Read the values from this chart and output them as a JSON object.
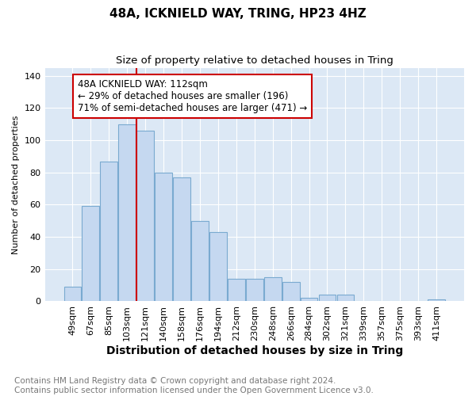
{
  "title": "48A, ICKNIELD WAY, TRING, HP23 4HZ",
  "subtitle": "Size of property relative to detached houses in Tring",
  "xlabel": "Distribution of detached houses by size in Tring",
  "ylabel": "Number of detached properties",
  "categories": [
    "49sqm",
    "67sqm",
    "85sqm",
    "103sqm",
    "121sqm",
    "140sqm",
    "158sqm",
    "176sqm",
    "194sqm",
    "212sqm",
    "230sqm",
    "248sqm",
    "266sqm",
    "284sqm",
    "302sqm",
    "321sqm",
    "339sqm",
    "357sqm",
    "375sqm",
    "393sqm",
    "411sqm"
  ],
  "values": [
    9,
    59,
    87,
    110,
    106,
    80,
    77,
    50,
    43,
    14,
    14,
    15,
    12,
    2,
    4,
    4,
    0,
    0,
    0,
    0,
    1
  ],
  "bar_color": "#c5d8f0",
  "bar_edge_color": "#7aaad0",
  "vline_color": "#cc0000",
  "vline_index": 4,
  "annotation_text": "48A ICKNIELD WAY: 112sqm\n← 29% of detached houses are smaller (196)\n71% of semi-detached houses are larger (471) →",
  "annotation_box_facecolor": "#ffffff",
  "annotation_box_edgecolor": "#cc0000",
  "ylim": [
    0,
    145
  ],
  "yticks": [
    0,
    20,
    40,
    60,
    80,
    100,
    120,
    140
  ],
  "bg_color": "#dce8f5",
  "grid_color": "#ffffff",
  "footer_text": "Contains HM Land Registry data © Crown copyright and database right 2024.\nContains public sector information licensed under the Open Government Licence v3.0.",
  "title_fontsize": 11,
  "subtitle_fontsize": 9.5,
  "xlabel_fontsize": 10,
  "ylabel_fontsize": 8,
  "tick_fontsize": 8,
  "annotation_fontsize": 8.5,
  "footer_fontsize": 7.5,
  "footer_color": "#777777"
}
